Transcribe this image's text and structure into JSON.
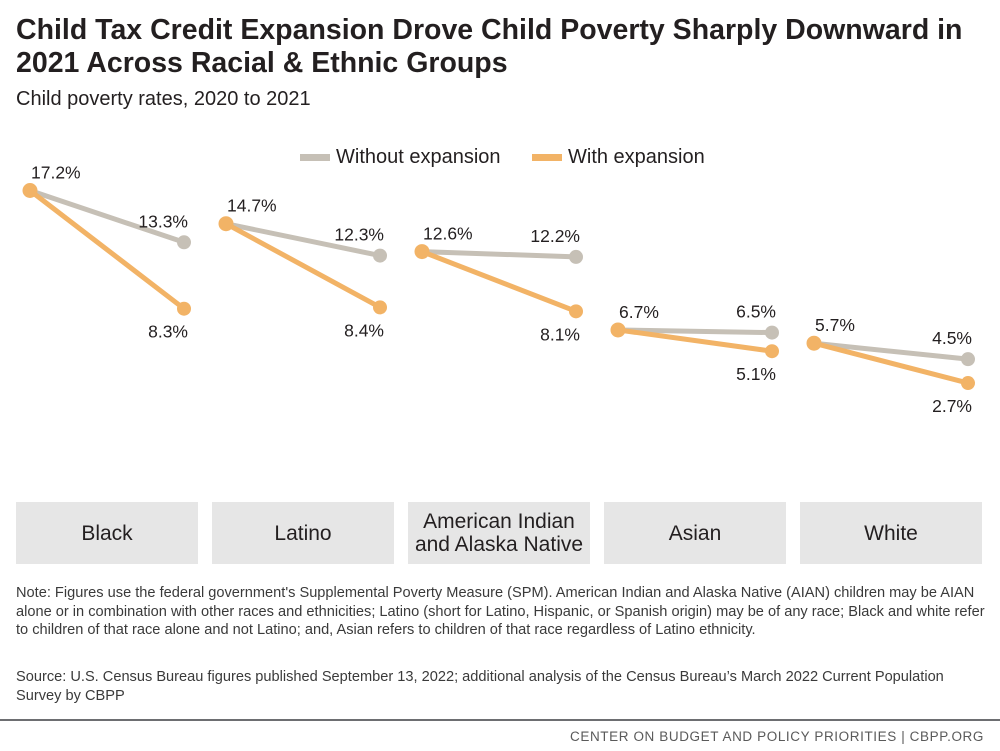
{
  "title": "Child Tax Credit Expansion Drove Child Poverty Sharply Downward in 2021 Across Racial & Ethnic Groups",
  "subtitle": "Child poverty rates, 2020 to 2021",
  "note": "Note: Figures use the federal government's Supplemental Poverty Measure (SPM). American Indian and Alaska Native (AIAN) children may be AIAN alone or in combination with other races and ethnicities; Latino (short for Latino, Hispanic, or Spanish origin) may be of any race; Black and white refer to children of that race alone and not Latino; and, Asian refers to children of that race regardless of Latino ethnicity.",
  "source": "Source: U.S. Census Bureau figures published September 13, 2022; additional analysis of the Census Bureau’s March 2022 Current Population Survey by CBPP",
  "footer": "CENTER ON BUDGET AND POLICY PRIORITIES | CBPP.ORG",
  "colors": {
    "without": "#c6c0b6",
    "with": "#f2b366",
    "category_box": "#e6e6e6"
  },
  "chart_data": {
    "type": "line",
    "title": "Child Tax Credit Expansion Drove Child Poverty Sharply Downward in 2021 Across Racial & Ethnic Groups",
    "subtitle": "Child poverty rates, 2020 to 2021",
    "unit": "%",
    "legend_position": "top-center",
    "grid": false,
    "legend": [
      "Without expansion",
      "With expansion"
    ],
    "groups": [
      {
        "name": "Black",
        "lines": [
          "Black"
        ],
        "start": 17.2,
        "without": 13.3,
        "with": 8.3,
        "labels": {
          "start": "17.2%",
          "without": "13.3%",
          "with": "8.3%"
        }
      },
      {
        "name": "Latino",
        "lines": [
          "Latino"
        ],
        "start": 14.7,
        "without": 12.3,
        "with": 8.4,
        "labels": {
          "start": "14.7%",
          "without": "12.3%",
          "with": "8.4%"
        }
      },
      {
        "name": "American Indian and Alaska Native",
        "lines": [
          "American Indian",
          "and Alaska Native"
        ],
        "start": 12.6,
        "without": 12.2,
        "with": 8.1,
        "labels": {
          "start": "12.6%",
          "without": "12.2%",
          "with": "8.1%"
        }
      },
      {
        "name": "Asian",
        "lines": [
          "Asian"
        ],
        "start": 6.7,
        "without": 6.5,
        "with": 5.1,
        "labels": {
          "start": "6.7%",
          "without": "6.5%",
          "with": "5.1%"
        }
      },
      {
        "name": "White",
        "lines": [
          "White"
        ],
        "start": 5.7,
        "without": 4.5,
        "with": 2.7,
        "labels": {
          "start": "5.7%",
          "without": "4.5%",
          "with": "2.7%"
        }
      }
    ]
  }
}
